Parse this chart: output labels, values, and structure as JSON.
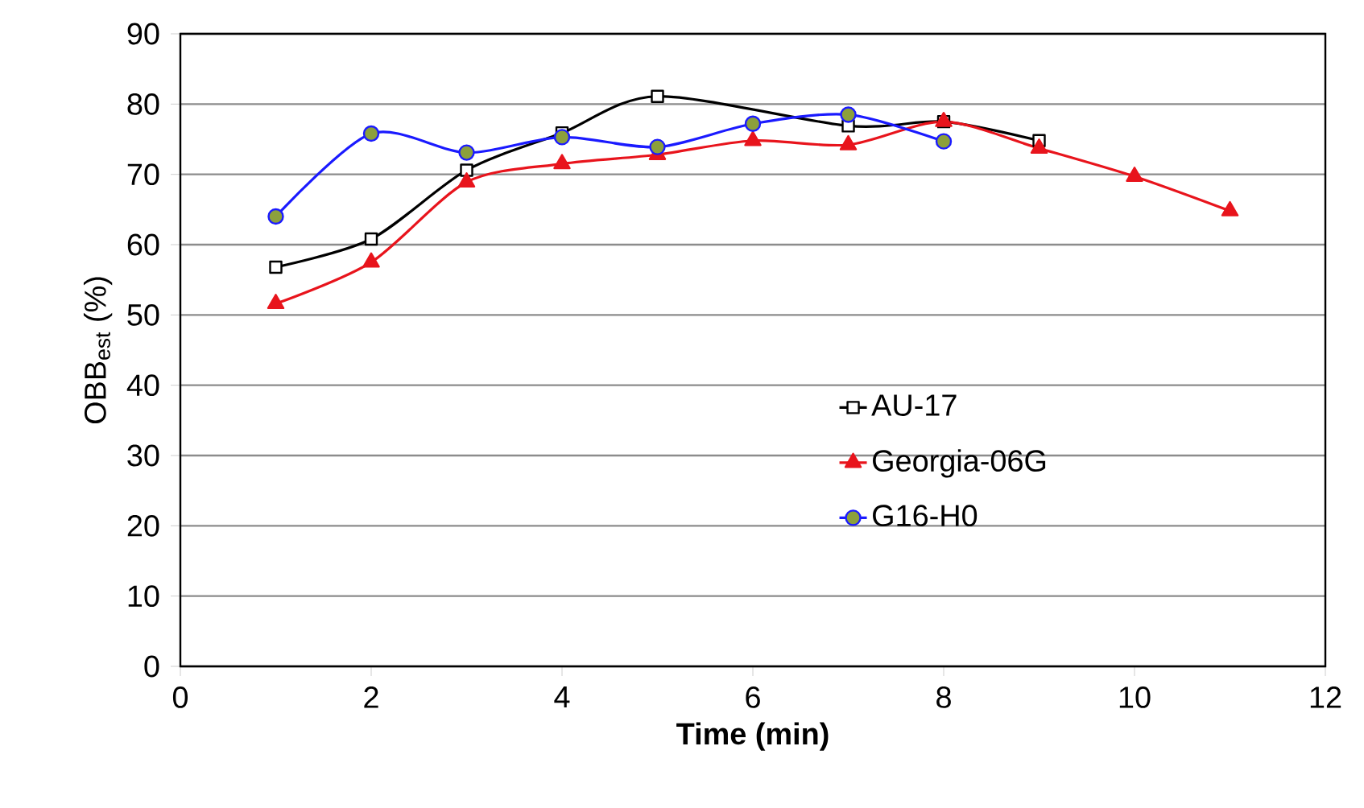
{
  "chart_data": {
    "type": "line",
    "xlabel": "Time (min)",
    "ylabel": "OBB$_{est}$ (%)",
    "xlim": [
      0,
      12
    ],
    "xticks": [
      0,
      2,
      4,
      6,
      8,
      10,
      12
    ],
    "ylim": [
      0,
      90
    ],
    "yticks": [
      0,
      10,
      20,
      30,
      40,
      50,
      60,
      70,
      80,
      90
    ],
    "grid": "y",
    "legend": "right",
    "series": [
      {
        "name": "AU-17",
        "color": "#000000",
        "marker": "square",
        "x": [
          1,
          2,
          3,
          4,
          5,
          6,
          7,
          8,
          9
        ],
        "values": [
          56.8,
          60.8,
          70.6,
          75.9,
          81.1,
          null,
          76.9,
          77.5,
          74.8
        ]
      },
      {
        "name": "Georgia-06G",
        "color": "#e8141c",
        "marker": "triangle",
        "x": [
          1,
          2,
          3,
          4,
          5,
          6,
          7,
          8,
          9,
          10,
          11
        ],
        "values": [
          51.6,
          57.5,
          68.9,
          71.5,
          72.8,
          74.8,
          74.2,
          77.5,
          73.7,
          69.7,
          64.8
        ]
      },
      {
        "name": "G16-H0",
        "color": "#1a1aff",
        "marker": "circle",
        "x": [
          1,
          2,
          3,
          4,
          5,
          6,
          7,
          8
        ],
        "values": [
          64.0,
          75.8,
          73.1,
          75.3,
          73.9,
          77.2,
          78.5,
          74.7
        ]
      }
    ]
  }
}
